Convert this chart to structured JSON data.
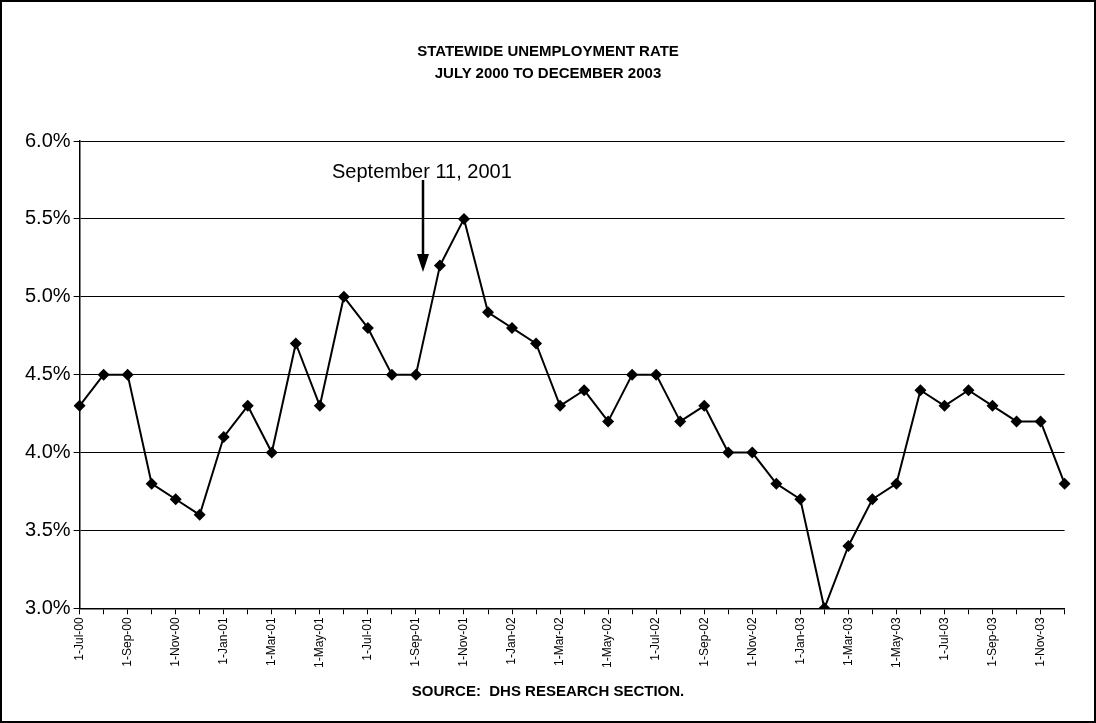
{
  "chart_data": {
    "type": "line",
    "title": "STATEWIDE UNEMPLOYMENT RATE",
    "subtitle": "JULY 2000 TO DECEMBER 2003",
    "categories": [
      "1-Jul-00",
      null,
      "1-Sep-00",
      null,
      "1-Nov-00",
      null,
      "1-Jan-01",
      null,
      "1-Mar-01",
      null,
      "1-May-01",
      null,
      "1-Jul-01",
      null,
      "1-Sep-01",
      null,
      "1-Nov-01",
      null,
      "1-Jan-02",
      null,
      "1-Mar-02",
      null,
      "1-May-02",
      null,
      "1-Jul-02",
      null,
      "1-Sep-02",
      null,
      "1-Nov-02",
      null,
      "1-Jan-03",
      null,
      "1-Mar-03",
      null,
      "1-May-03",
      null,
      "1-Jul-03",
      null,
      "1-Sep-03",
      null,
      "1-Nov-03",
      null
    ],
    "series": [
      {
        "color": "#000000",
        "values": [
          4.3,
          4.5,
          4.5,
          3.8,
          3.7,
          3.6,
          4.1,
          4.3,
          4.0,
          4.7,
          4.3,
          5.0,
          4.8,
          4.5,
          4.5,
          5.2,
          5.5,
          4.9,
          4.8,
          4.7,
          4.3,
          4.4,
          4.2,
          4.5,
          4.5,
          4.2,
          4.3,
          4.0,
          4.0,
          3.8,
          3.7,
          3.0,
          3.4,
          3.7,
          3.8,
          4.4,
          4.3,
          4.4,
          4.3,
          4.2,
          4.2,
          3.8
        ]
      }
    ],
    "ylim": [
      3,
      6
    ],
    "yticks": [
      {
        "value": 3,
        "label": "3.0%"
      },
      {
        "value": 3.5,
        "label": "3.5%"
      },
      {
        "value": 4,
        "label": "4.0%"
      },
      {
        "value": 4.5,
        "label": "4.5%"
      },
      {
        "value": 5,
        "label": "5.0%"
      },
      {
        "value": 5.5,
        "label": "5.5%"
      },
      {
        "value": 6,
        "label": "6.0%"
      }
    ],
    "grid": "y",
    "marker": "diamond",
    "line_style": "solid",
    "legend": false,
    "annotations": [
      "September 11, 2001",
      "SOURCE:  DHS RESEARCH SECTION."
    ]
  }
}
